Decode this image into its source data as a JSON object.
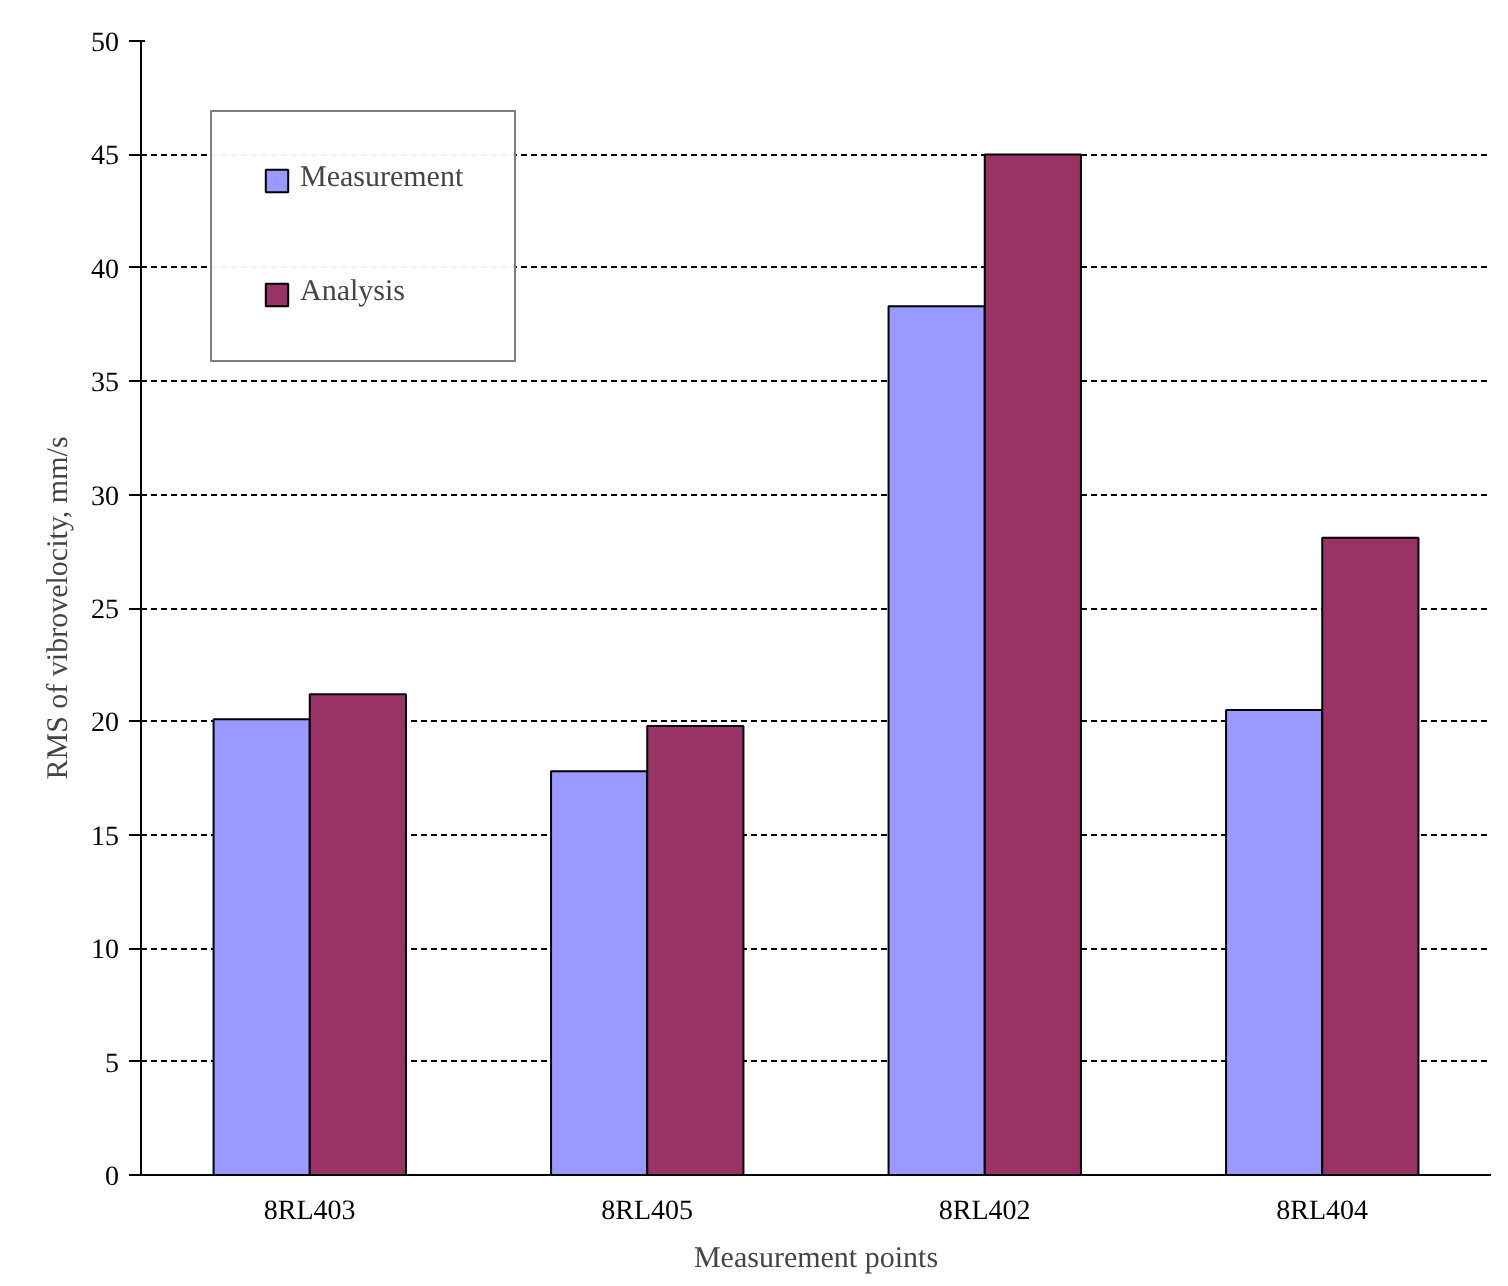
{
  "chart_data": {
    "type": "bar",
    "xlabel": "Measurement points",
    "ylabel": "RMS of vibrovelocity, mm/s",
    "categories": [
      "8RL403",
      "8RL405",
      "8RL402",
      "8RL404"
    ],
    "series": [
      {
        "name": "Measurement",
        "color": "#9999ff",
        "values": [
          20.1,
          17.8,
          38.3,
          20.5
        ]
      },
      {
        "name": "Analysis",
        "color": "#993366",
        "values": [
          21.2,
          19.8,
          45.0,
          28.1
        ]
      }
    ],
    "ylim": [
      0,
      50
    ],
    "yticks": [
      0,
      5,
      10,
      15,
      20,
      25,
      30,
      35,
      40,
      45,
      50
    ],
    "grid": "y",
    "legend": "top left"
  }
}
